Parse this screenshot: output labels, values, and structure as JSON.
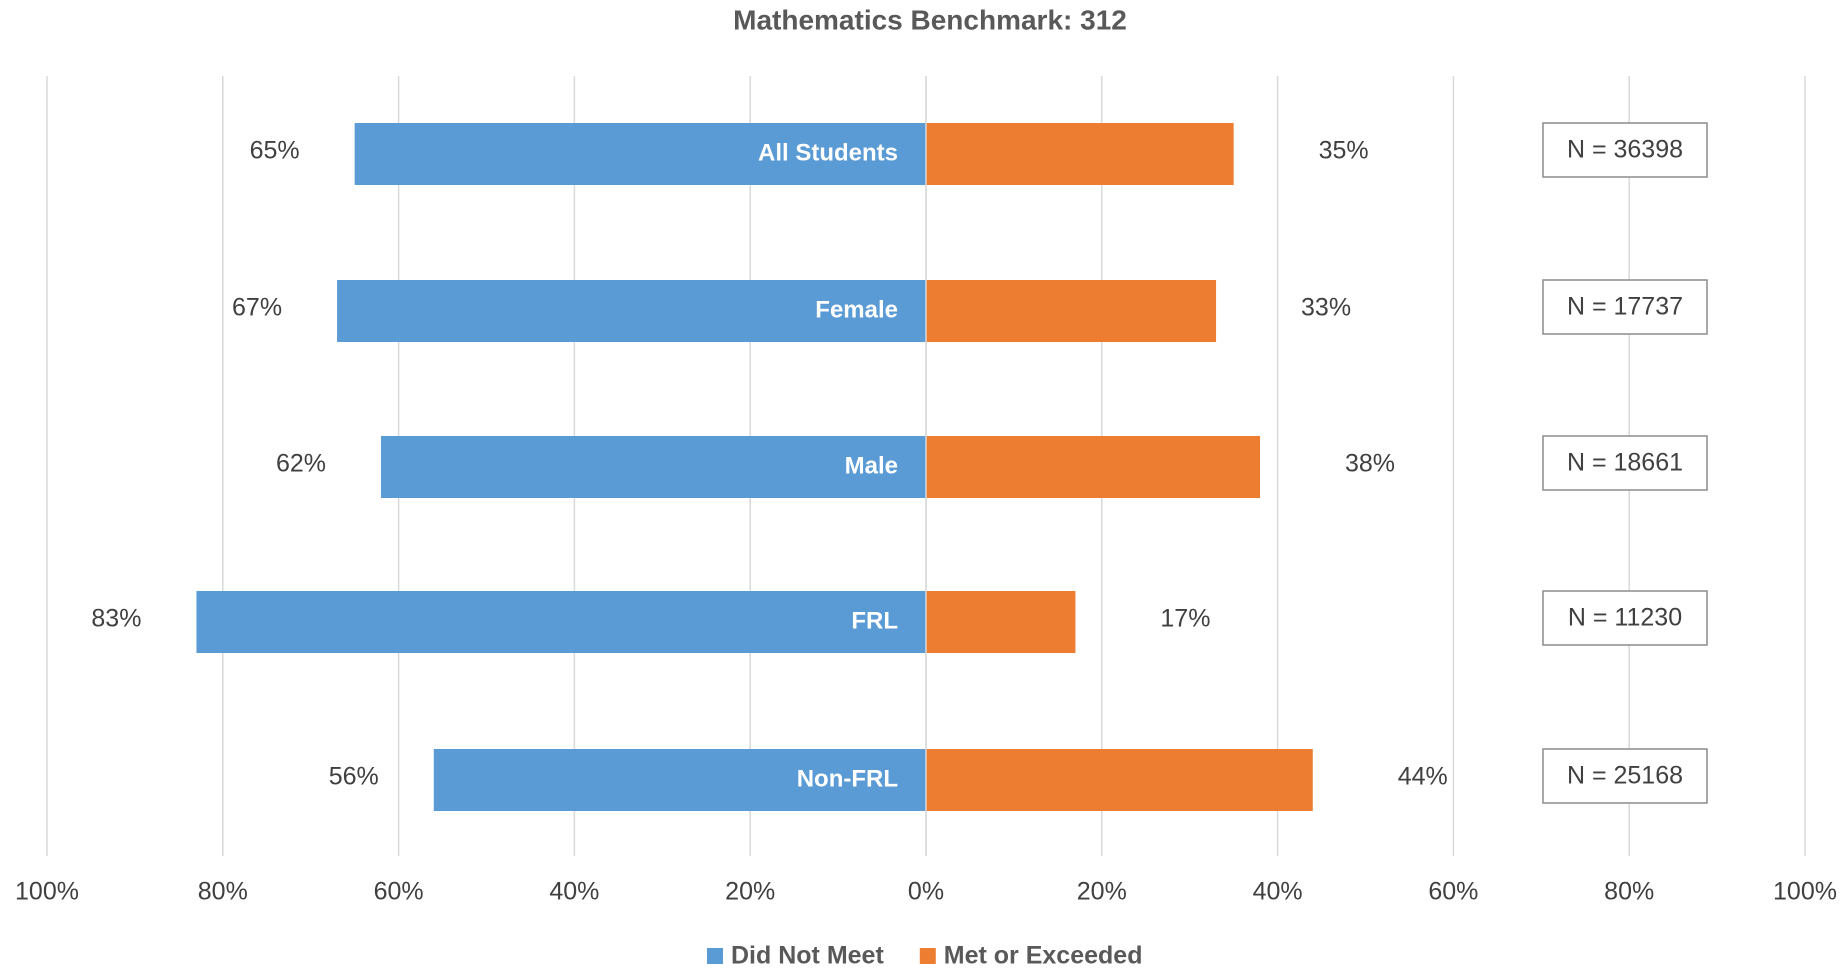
{
  "chart_data": {
    "type": "diverging-bar",
    "title": "Mathematics Benchmark: 312",
    "categories": [
      "All Students",
      "Female",
      "Male",
      "FRL",
      "Non-FRL"
    ],
    "series": [
      {
        "name": "Did Not Meet",
        "color": "#5b9bd5",
        "values": [
          -65,
          -67,
          -62,
          -83,
          -56
        ],
        "value_labels": [
          "65%",
          "67%",
          "62%",
          "83%",
          "56%"
        ]
      },
      {
        "name": "Met or Exceeded",
        "color": "#ed7d31",
        "values": [
          35,
          33,
          38,
          17,
          44
        ],
        "value_labels": [
          "35%",
          "33%",
          "38%",
          "17%",
          "44%"
        ]
      }
    ],
    "xlim": [
      -100,
      100
    ],
    "xticks": [
      {
        "value": -100,
        "label": "100%"
      },
      {
        "value": -80,
        "label": "80%"
      },
      {
        "value": -60,
        "label": "60%"
      },
      {
        "value": -40,
        "label": "40%"
      },
      {
        "value": -20,
        "label": "20%"
      },
      {
        "value": 0,
        "label": "0%"
      },
      {
        "value": 20,
        "label": "20%"
      },
      {
        "value": 40,
        "label": "40%"
      },
      {
        "value": 60,
        "label": "60%"
      },
      {
        "value": 80,
        "label": "80%"
      },
      {
        "value": 100,
        "label": "100%"
      }
    ],
    "grid": true,
    "annotations": [
      "N = 36398",
      "N = 17737",
      "N = 18661",
      "N = 11230",
      "N = 25168"
    ],
    "legend": "bottom"
  }
}
